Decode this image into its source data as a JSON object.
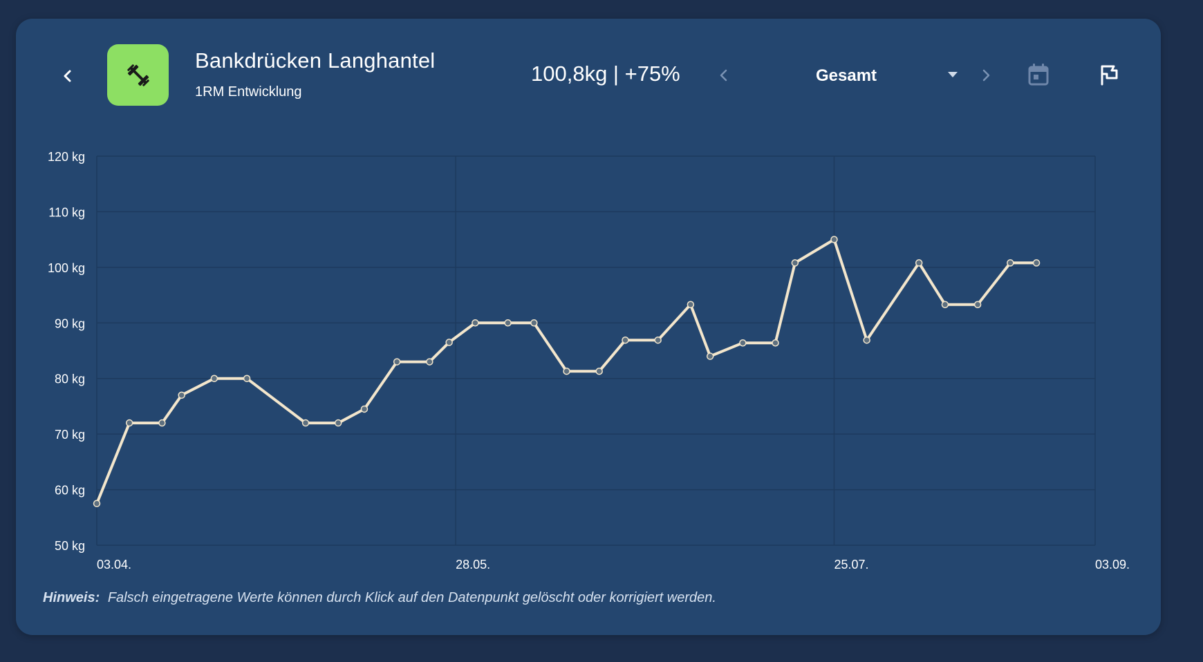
{
  "header": {
    "title": "Bankdrücken Langhantel",
    "subtitle": "1RM Entwicklung",
    "summary": "100,8kg | +75%",
    "period": "Gesamt"
  },
  "icons": {
    "back": "chevron-left-icon",
    "exercise": "dumbbell-icon",
    "prev": "chevron-left-icon",
    "next": "chevron-right-icon",
    "dropdown": "caret-down-icon",
    "calendar": "calendar-icon",
    "flag": "flag-icon"
  },
  "colors": {
    "background": "#1c2f4d",
    "card": "#24466f",
    "accent_icon_bg": "#8ddf63",
    "line": "#f3e6cc",
    "grid": "#1d3a5e"
  },
  "chart_data": {
    "type": "line",
    "title": "",
    "xlabel": "",
    "ylabel": "",
    "ylim": [
      50,
      120
    ],
    "yticks": [
      50,
      60,
      70,
      80,
      90,
      100,
      110,
      120
    ],
    "ytick_labels": [
      "50 kg",
      "60 kg",
      "70 kg",
      "80 kg",
      "90 kg",
      "100 kg",
      "110 kg",
      "120 kg"
    ],
    "xlim": [
      "2023-04-03",
      "2023-09-03"
    ],
    "xticks": [
      "2023-04-03",
      "2023-05-28",
      "2023-07-25",
      "2023-09-03"
    ],
    "xtick_labels": [
      "03.04.",
      "28.05.",
      "25.07.",
      "03.09."
    ],
    "grid": true,
    "series": [
      {
        "name": "",
        "points": [
          {
            "x": "2023-04-03",
            "y": 57.5
          },
          {
            "x": "2023-04-08",
            "y": 72
          },
          {
            "x": "2023-04-13",
            "y": 72
          },
          {
            "x": "2023-04-16",
            "y": 77
          },
          {
            "x": "2023-04-21",
            "y": 80
          },
          {
            "x": "2023-04-26",
            "y": 80
          },
          {
            "x": "2023-05-05",
            "y": 72
          },
          {
            "x": "2023-05-10",
            "y": 72
          },
          {
            "x": "2023-05-14",
            "y": 74.5
          },
          {
            "x": "2023-05-19",
            "y": 83
          },
          {
            "x": "2023-05-24",
            "y": 83
          },
          {
            "x": "2023-05-27",
            "y": 86.5
          },
          {
            "x": "2023-05-31",
            "y": 90
          },
          {
            "x": "2023-06-05",
            "y": 90
          },
          {
            "x": "2023-06-09",
            "y": 90
          },
          {
            "x": "2023-06-14",
            "y": 81.3
          },
          {
            "x": "2023-06-19",
            "y": 81.3
          },
          {
            "x": "2023-06-23",
            "y": 86.9
          },
          {
            "x": "2023-06-28",
            "y": 86.9
          },
          {
            "x": "2023-07-03",
            "y": 93.3
          },
          {
            "x": "2023-07-06",
            "y": 84
          },
          {
            "x": "2023-07-11",
            "y": 86.4
          },
          {
            "x": "2023-07-16",
            "y": 86.4
          },
          {
            "x": "2023-07-19",
            "y": 100.8
          },
          {
            "x": "2023-07-25",
            "y": 105
          },
          {
            "x": "2023-07-30",
            "y": 86.9
          },
          {
            "x": "2023-08-07",
            "y": 100.8
          },
          {
            "x": "2023-08-11",
            "y": 93.3
          },
          {
            "x": "2023-08-16",
            "y": 93.3
          },
          {
            "x": "2023-08-21",
            "y": 100.8
          },
          {
            "x": "2023-08-25",
            "y": 100.8
          }
        ]
      }
    ]
  },
  "footer": {
    "hint_label": "Hinweis:",
    "hint_text": "Falsch eingetragene Werte können durch Klick auf den Datenpunkt gelöscht oder korrigiert werden."
  }
}
